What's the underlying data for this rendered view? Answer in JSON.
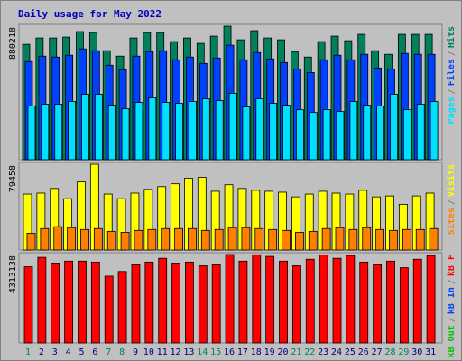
{
  "title": "Daily usage for May 2022",
  "chart_data": [
    {
      "type": "bar",
      "ylim": [
        0,
        880218
      ],
      "yticks": [
        880218
      ],
      "legend_separator": "/",
      "series": [
        {
          "name": "Hits",
          "color": "#00805c",
          "values": [
            760476,
            802392,
            802392,
            808380,
            844308,
            838320,
            718560,
            682632,
            802392,
            838320,
            838320,
            778440,
            802392,
            766464,
            814368,
            880218,
            790416,
            850296,
            802392,
            790416,
            712572,
            676644,
            778440,
            814368,
            784428,
            826344,
            718560,
            694608,
            826344,
            826344,
            826344
          ]
        },
        {
          "name": "Files",
          "color": "#0040ff",
          "values": [
            646704,
            682632,
            676644,
            688620,
            730536,
            718560,
            622752,
            592812,
            682632,
            712572,
            718560,
            658680,
            676644,
            634728,
            670656,
            754488,
            658680,
            706584,
            664668,
            640716,
            598800,
            574848,
            658680,
            688620,
            658680,
            694608,
            604788,
            598800,
            700596,
            694608,
            694608
          ]
        },
        {
          "name": "Pages",
          "color": "#00e0ff",
          "values": [
            353292,
            365268,
            365268,
            383232,
            431136,
            431136,
            359280,
            335328,
            377244,
            407184,
            377244,
            371256,
            383232,
            401196,
            389220,
            437124,
            347304,
            401196,
            371256,
            359280,
            329340,
            311376,
            329340,
            317364,
            383232,
            359280,
            353292,
            431136,
            329340,
            365268,
            383232
          ]
        }
      ]
    },
    {
      "type": "bar",
      "ylim": [
        0,
        79458
      ],
      "yticks": [
        79458
      ],
      "legend_separator": "/",
      "series": [
        {
          "name": "Visits",
          "color": "#ffff00",
          "values": [
            51822,
            52686,
            57004,
            47504,
            63050,
            79458,
            51822,
            47504,
            52686,
            56141,
            58732,
            61323,
            66505,
            67369,
            54413,
            60459,
            57004,
            55277,
            54413,
            53549,
            49231,
            51822,
            54413,
            52686,
            51822,
            55277,
            49231,
            50095,
            42321,
            50095,
            52686
          ]
        },
        {
          "name": "Sites",
          "color": "#ff8000",
          "values": [
            15547,
            19865,
            21593,
            20729,
            19001,
            19865,
            17274,
            16410,
            18138,
            19001,
            19865,
            19865,
            19865,
            18138,
            19001,
            20729,
            20729,
            19865,
            19001,
            18138,
            16410,
            17274,
            19865,
            20729,
            19001,
            20729,
            19001,
            18138,
            19001,
            19001,
            19865
          ]
        }
      ]
    },
    {
      "type": "bar",
      "ylim": [
        0,
        4313138
      ],
      "yticks": [
        4313138
      ],
      "legend_separator": "/",
      "categories": [
        "1",
        "2",
        "3",
        "4",
        "5",
        "6",
        "7",
        "8",
        "9",
        "10",
        "11",
        "12",
        "13",
        "14",
        "15",
        "16",
        "17",
        "18",
        "19",
        "20",
        "21",
        "22",
        "23",
        "24",
        "25",
        "26",
        "27",
        "28",
        "29",
        "30",
        "31"
      ],
      "highlight_categories": [
        "1",
        "7",
        "8",
        "14",
        "15",
        "21",
        "22",
        "28",
        "29"
      ],
      "category_color": "#000080",
      "highlight_color": "#00805c",
      "series": [
        {
          "name": "kB F",
          "color": "#ff0000",
          "values": [
            3716685,
            4175535,
            3900225,
            3991995,
            3991995,
            3946110,
            3257835,
            3487260,
            3808455,
            3946110,
            4129650,
            3900225,
            3946110,
            3762570,
            3808455,
            4313138,
            3991995,
            4300000,
            4221420,
            3991995,
            3762570,
            4083765,
            4290000,
            4129650,
            4267305,
            3946110,
            3808455,
            3991995,
            3670800,
            4083765,
            4267305
          ]
        },
        {
          "name": "kB In",
          "color": "#0040ff"
        },
        {
          "name": "kB Out",
          "color": "#00c000"
        }
      ]
    }
  ]
}
